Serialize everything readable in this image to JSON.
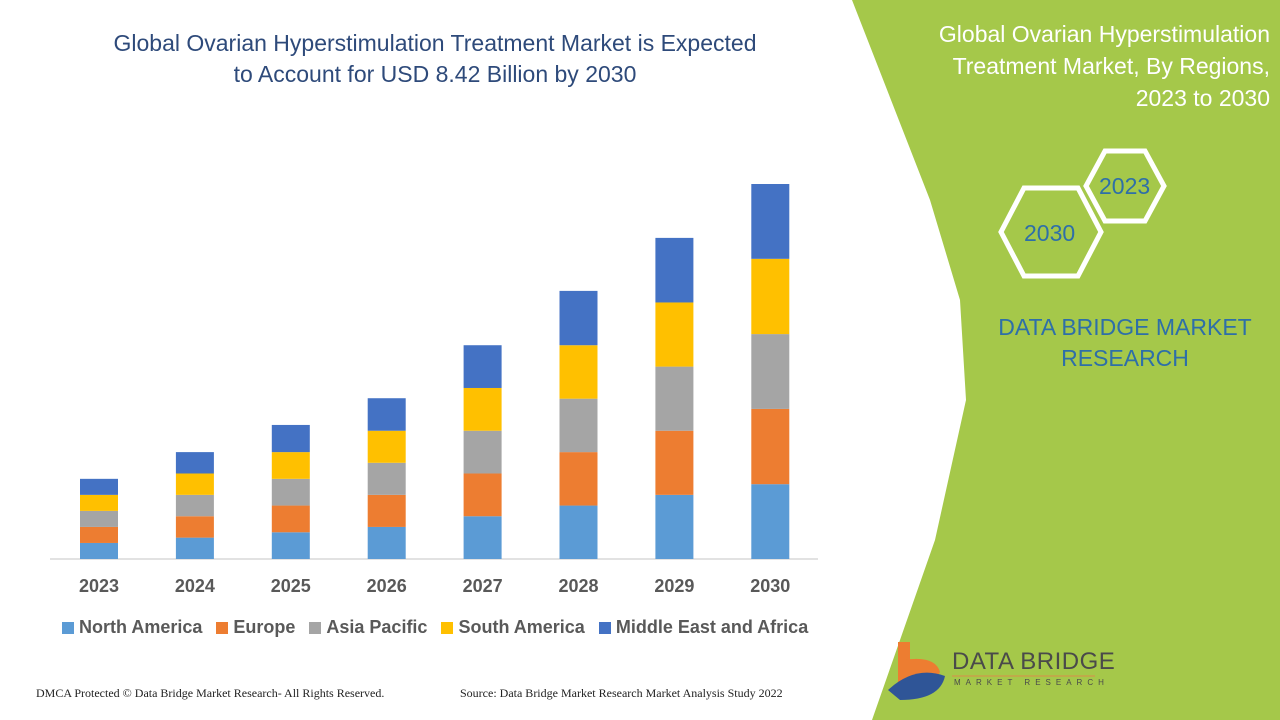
{
  "header": {
    "title_line1": "Global Ovarian Hyperstimulation Treatment Market is Expected",
    "title_line2": "to Account for USD 8.42 Billion by 2030"
  },
  "side_panel": {
    "title_line1": "Global Ovarian Hyperstimulation",
    "title_line2": "Treatment Market, By Regions,",
    "title_line3": "2023 to 2030",
    "hex_start": "2023",
    "hex_end": "2030",
    "brand_line1": "DATA BRIDGE MARKET",
    "brand_line2": "RESEARCH",
    "logo_name": "DATA BRIDGE",
    "logo_tagline": "MARKET RESEARCH",
    "panel_color": "#a5c84a"
  },
  "footer": {
    "copyright": "DMCA Protected © Data Bridge Market Research- All Rights Reserved.",
    "source": "Source: Data Bridge Market Research Market Analysis Study 2022"
  },
  "chart_data": {
    "type": "bar",
    "stacked": true,
    "categories": [
      "2023",
      "2024",
      "2025",
      "2026",
      "2027",
      "2028",
      "2029",
      "2030"
    ],
    "series": [
      {
        "name": "North America",
        "color": "#5b9bd5",
        "values": [
          0.36,
          0.48,
          0.6,
          0.72,
          0.96,
          1.2,
          1.44,
          1.68
        ]
      },
      {
        "name": "Europe",
        "color": "#ed7d31",
        "values": [
          0.36,
          0.48,
          0.6,
          0.72,
          0.96,
          1.2,
          1.44,
          1.69
        ]
      },
      {
        "name": "Asia Pacific",
        "color": "#a5a5a5",
        "values": [
          0.36,
          0.48,
          0.6,
          0.72,
          0.96,
          1.2,
          1.44,
          1.68
        ]
      },
      {
        "name": "South America",
        "color": "#ffc000",
        "values": [
          0.36,
          0.48,
          0.6,
          0.72,
          0.96,
          1.2,
          1.44,
          1.69
        ]
      },
      {
        "name": "Middle East and Africa",
        "color": "#4472c4",
        "values": [
          0.36,
          0.48,
          0.61,
          0.73,
          0.96,
          1.22,
          1.45,
          1.68
        ]
      }
    ],
    "ylim": [
      0,
      8.42
    ],
    "unit": "USD Billion",
    "grid": false,
    "legend_position": "bottom"
  }
}
